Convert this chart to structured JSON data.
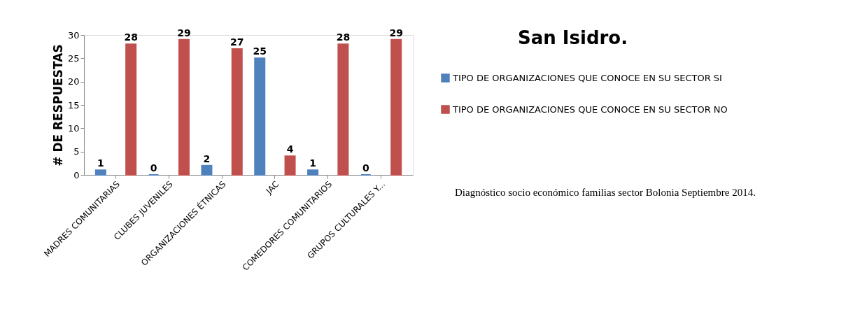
{
  "chart_data": {
    "type": "bar",
    "title": "San Isidro.",
    "ylabel": "# DE RESPUESTAS",
    "categories": [
      "MADRES COMUNITARIAS",
      "CLUBES JUVENILES",
      "ORGANIZACIONES ÉTNICAS",
      "JAC",
      "COMEDORES COMUNITARIOS",
      "GRUPOS CULTURALES Y..."
    ],
    "series": [
      {
        "name": "TIPO DE ORGANIZACIONES QUE CONOCE EN SU SECTOR SI",
        "color": "#4f81bd",
        "values": [
          1,
          0,
          2,
          25,
          1,
          0
        ]
      },
      {
        "name": "TIPO DE ORGANIZACIONES QUE CONOCE EN SU SECTOR NO",
        "color": "#c0504d",
        "values": [
          28,
          29,
          27,
          4,
          28,
          29
        ]
      }
    ],
    "ylim": [
      0,
      30
    ],
    "yticks": [
      0,
      5,
      10,
      15,
      20,
      25,
      30
    ],
    "grid": false,
    "legend": "right",
    "data_labels": true,
    "annotations": [
      "Diagnóstico socio económico familias sector Bolonia Septiembre 2014."
    ]
  }
}
